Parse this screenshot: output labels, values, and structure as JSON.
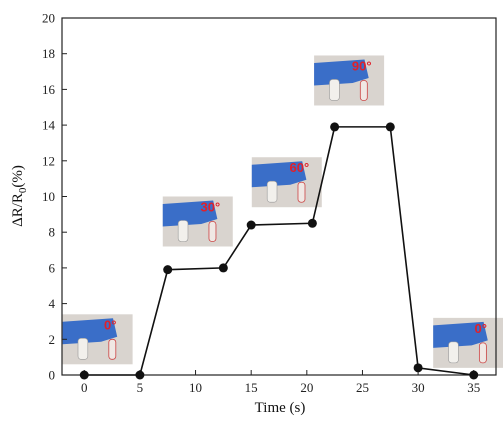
{
  "chart_data": {
    "type": "line",
    "xlabel": "Time (s)",
    "ylabel": {
      "main": "ΔR/R",
      "sub": "0",
      "tail": "(%)"
    },
    "xlim": [
      -2,
      37
    ],
    "ylim": [
      0,
      20
    ],
    "xticks": [
      0,
      5,
      10,
      15,
      20,
      25,
      30,
      35
    ],
    "yticks": [
      0,
      2,
      4,
      6,
      8,
      10,
      12,
      14,
      16,
      18,
      20
    ],
    "grid": false,
    "series": [
      {
        "x": [
          0,
          5,
          7.5,
          12.5,
          15,
          20.5,
          22.5,
          27.5,
          30,
          35
        ],
        "y": [
          0,
          0,
          5.9,
          6.0,
          8.4,
          8.5,
          13.9,
          13.9,
          0.4,
          0
        ]
      }
    ],
    "annotations": [
      {
        "label": "0°",
        "x": 1.2,
        "y": 2.0
      },
      {
        "label": "30°",
        "x": 10.2,
        "y": 8.6
      },
      {
        "label": "60°",
        "x": 18.2,
        "y": 10.8
      },
      {
        "label": "90°",
        "x": 23.8,
        "y": 16.5
      },
      {
        "label": "0°",
        "x": 34.5,
        "y": 1.8
      }
    ]
  },
  "colors": {
    "line": "#111111",
    "marker": "#111111",
    "angle_label": "#e0202a",
    "glove": "#3a6ec8",
    "photo_bg": "#d9d4cf"
  }
}
